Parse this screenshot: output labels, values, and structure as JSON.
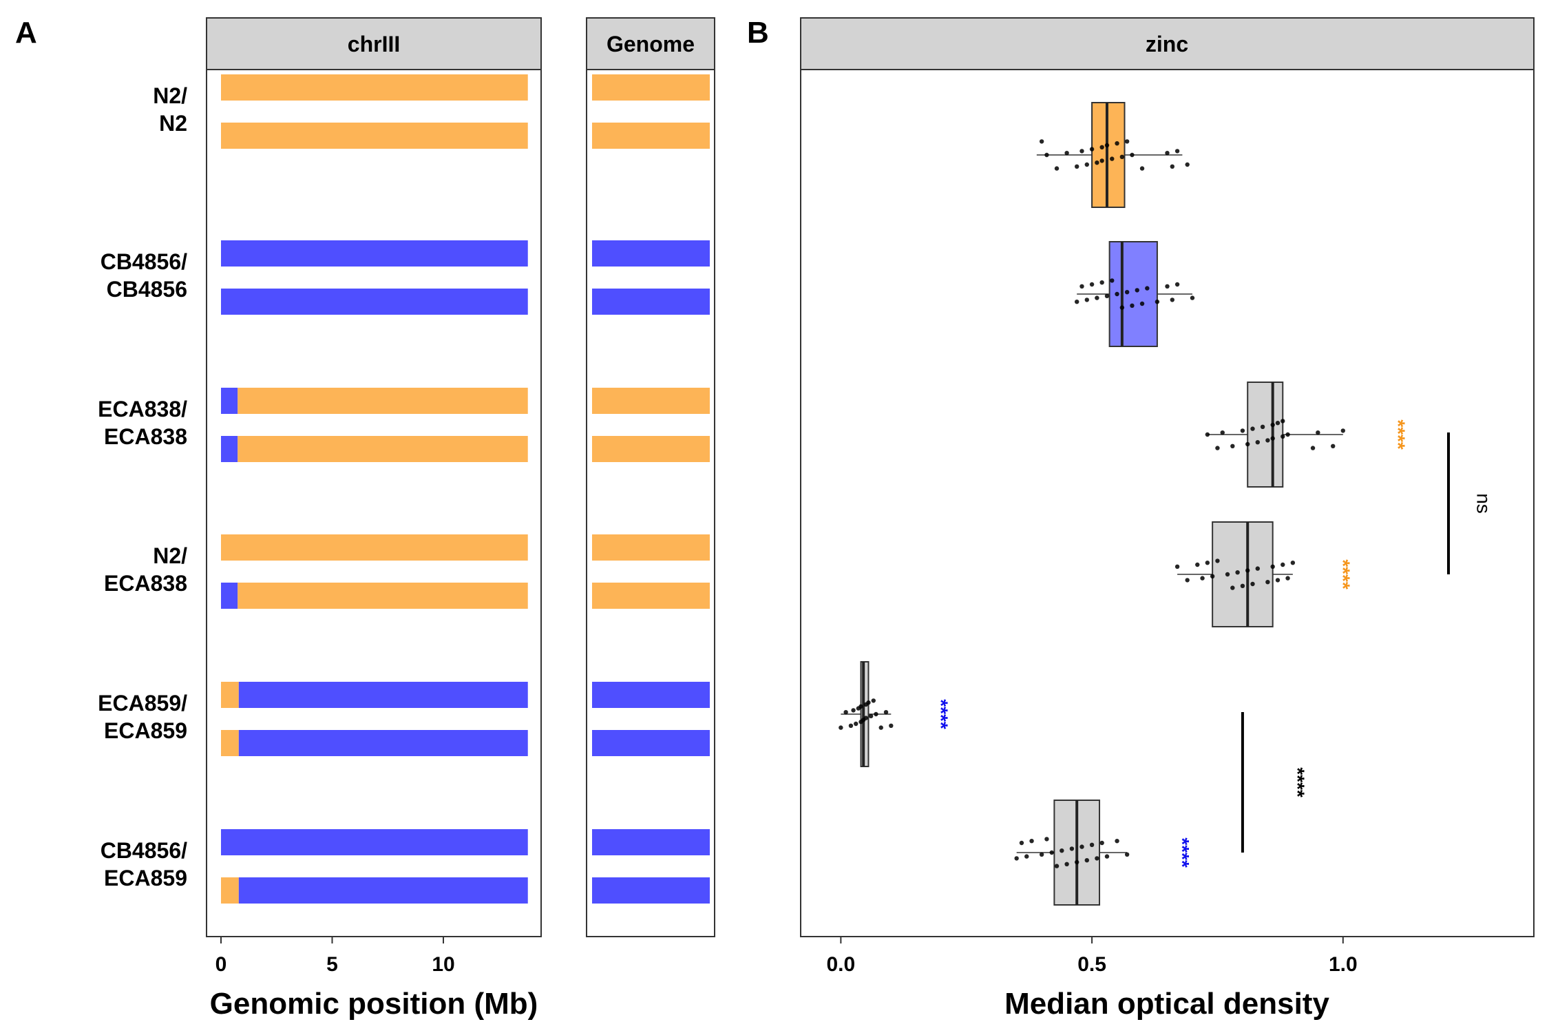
{
  "panel_a": {
    "letter": "A",
    "facets": [
      "chrIII",
      "Genome"
    ],
    "xlabel": "Genomic position (Mb)",
    "xticks": [
      "0",
      "5",
      "10"
    ],
    "xlim": [
      0,
      14
    ],
    "colors": {
      "N2": "#FDB456",
      "CB4856": "#4F4FFF"
    },
    "strains": [
      {
        "label1": "N2/",
        "label2": "N2",
        "chrIII": [
          [
            {
              "from": 0,
              "to": 13.8,
              "g": "N2"
            }
          ],
          [
            {
              "from": 0,
              "to": 13.8,
              "g": "N2"
            }
          ]
        ],
        "genome": [
          "N2",
          "N2"
        ]
      },
      {
        "label1": "CB4856/",
        "label2": "CB4856",
        "chrIII": [
          [
            {
              "from": 0,
              "to": 13.8,
              "g": "CB4856"
            }
          ],
          [
            {
              "from": 0,
              "to": 13.8,
              "g": "CB4856"
            }
          ]
        ],
        "genome": [
          "CB4856",
          "CB4856"
        ]
      },
      {
        "label1": "ECA838/",
        "label2": "ECA838",
        "chrIII": [
          [
            {
              "from": 0,
              "to": 0.75,
              "g": "CB4856"
            },
            {
              "from": 0.75,
              "to": 13.8,
              "g": "N2"
            }
          ],
          [
            {
              "from": 0,
              "to": 0.75,
              "g": "CB4856"
            },
            {
              "from": 0.75,
              "to": 13.8,
              "g": "N2"
            }
          ]
        ],
        "genome": [
          "N2",
          "N2"
        ]
      },
      {
        "label1": "N2/",
        "label2": "ECA838",
        "chrIII": [
          [
            {
              "from": 0,
              "to": 13.8,
              "g": "N2"
            }
          ],
          [
            {
              "from": 0,
              "to": 0.75,
              "g": "CB4856"
            },
            {
              "from": 0.75,
              "to": 13.8,
              "g": "N2"
            }
          ]
        ],
        "genome": [
          "N2",
          "N2"
        ]
      },
      {
        "label1": "ECA859/",
        "label2": "ECA859",
        "chrIII": [
          [
            {
              "from": 0,
              "to": 0.8,
              "g": "N2"
            },
            {
              "from": 0.8,
              "to": 13.8,
              "g": "CB4856"
            }
          ],
          [
            {
              "from": 0,
              "to": 0.8,
              "g": "N2"
            },
            {
              "from": 0.8,
              "to": 13.8,
              "g": "CB4856"
            }
          ]
        ],
        "genome": [
          "CB4856",
          "CB4856"
        ]
      },
      {
        "label1": "CB4856/",
        "label2": "ECA859",
        "chrIII": [
          [
            {
              "from": 0,
              "to": 13.8,
              "g": "CB4856"
            }
          ],
          [
            {
              "from": 0,
              "to": 0.8,
              "g": "N2"
            },
            {
              "from": 0.8,
              "to": 13.8,
              "g": "CB4856"
            }
          ]
        ],
        "genome": [
          "CB4856",
          "CB4856"
        ]
      }
    ]
  },
  "panel_b": {
    "letter": "B",
    "facet": "zinc",
    "xlabel": "Median optical density",
    "xticks": [
      {
        "value": 0.0,
        "label": "0.0"
      },
      {
        "value": 0.5,
        "label": "0.5"
      },
      {
        "value": 1.0,
        "label": "1.0"
      }
    ],
    "xlim": [
      -0.08,
      1.38
    ],
    "annotations": {
      "stars_text": "****",
      "ns_text": "ns",
      "colors": {
        "orange": "#F5961E",
        "blue": "#1010EE",
        "black": "#000000"
      }
    }
  },
  "chart_data": {
    "type": "box",
    "title": "zinc",
    "xlabel": "Median optical density",
    "ylabel": "",
    "xlim": [
      -0.08,
      1.38
    ],
    "groups": [
      {
        "name": "N2/N2",
        "fill": "#FDB456",
        "q1": 0.5,
        "median": 0.53,
        "q3": 0.565,
        "whisker_low": 0.39,
        "whisker_high": 0.68,
        "points": [
          0.4,
          0.41,
          0.43,
          0.45,
          0.47,
          0.48,
          0.49,
          0.5,
          0.51,
          0.52,
          0.52,
          0.53,
          0.54,
          0.55,
          0.56,
          0.57,
          0.58,
          0.6,
          0.65,
          0.66,
          0.67,
          0.69
        ]
      },
      {
        "name": "CB4856/CB4856",
        "fill": "#8080FF",
        "q1": 0.535,
        "median": 0.56,
        "q3": 0.63,
        "whisker_low": 0.47,
        "whisker_high": 0.7,
        "points": [
          0.47,
          0.48,
          0.49,
          0.5,
          0.51,
          0.52,
          0.53,
          0.54,
          0.55,
          0.56,
          0.57,
          0.58,
          0.59,
          0.6,
          0.61,
          0.63,
          0.65,
          0.66,
          0.67,
          0.7
        ]
      },
      {
        "name": "ECA838/ECA838",
        "fill": "#D3D3D3",
        "q1": 0.81,
        "median": 0.86,
        "q3": 0.88,
        "whisker_low": 0.73,
        "whisker_high": 1.0,
        "points": [
          0.73,
          0.75,
          0.76,
          0.78,
          0.8,
          0.81,
          0.82,
          0.83,
          0.84,
          0.85,
          0.86,
          0.86,
          0.87,
          0.88,
          0.88,
          0.89,
          0.94,
          0.95,
          0.98,
          1.0
        ]
      },
      {
        "name": "N2/ECA838",
        "fill": "#D3D3D3",
        "q1": 0.74,
        "median": 0.81,
        "q3": 0.86,
        "whisker_low": 0.67,
        "whisker_high": 0.9,
        "points": [
          0.67,
          0.69,
          0.71,
          0.72,
          0.73,
          0.74,
          0.75,
          0.77,
          0.78,
          0.79,
          0.8,
          0.81,
          0.82,
          0.83,
          0.85,
          0.86,
          0.87,
          0.88,
          0.89,
          0.9
        ]
      },
      {
        "name": "ECA859/ECA859",
        "fill": "#D3D3D3",
        "q1": 0.04,
        "median": 0.045,
        "q3": 0.055,
        "whisker_low": 0.0,
        "whisker_high": 0.1,
        "points": [
          0.0,
          0.01,
          0.02,
          0.025,
          0.03,
          0.035,
          0.04,
          0.04,
          0.045,
          0.05,
          0.05,
          0.055,
          0.06,
          0.065,
          0.07,
          0.08,
          0.09,
          0.1
        ]
      },
      {
        "name": "CB4856/ECA859",
        "fill": "#D3D3D3",
        "q1": 0.425,
        "median": 0.47,
        "q3": 0.515,
        "whisker_low": 0.35,
        "whisker_high": 0.57,
        "points": [
          0.35,
          0.36,
          0.37,
          0.38,
          0.4,
          0.41,
          0.42,
          0.43,
          0.44,
          0.45,
          0.46,
          0.47,
          0.48,
          0.49,
          0.5,
          0.51,
          0.52,
          0.53,
          0.55,
          0.57
        ]
      }
    ],
    "significance": [
      {
        "group": "ECA838/ECA838",
        "x": 1.11,
        "text": "****",
        "color": "orange"
      },
      {
        "group": "N2/ECA838",
        "x": 1.0,
        "text": "****",
        "color": "orange"
      },
      {
        "group": "ECA859/ECA859",
        "x": 0.2,
        "text": "****",
        "color": "blue"
      },
      {
        "group": "CB4856/ECA859",
        "x": 0.68,
        "text": "****",
        "color": "blue"
      }
    ],
    "brackets": [
      {
        "from": "ECA838/ECA838",
        "to": "N2/ECA838",
        "x": 1.21,
        "label": "ns",
        "label_x": 1.28
      },
      {
        "from": "ECA859/ECA859",
        "to": "CB4856/ECA859",
        "x": 0.8,
        "label": "****",
        "label_x": 0.91
      }
    ]
  }
}
